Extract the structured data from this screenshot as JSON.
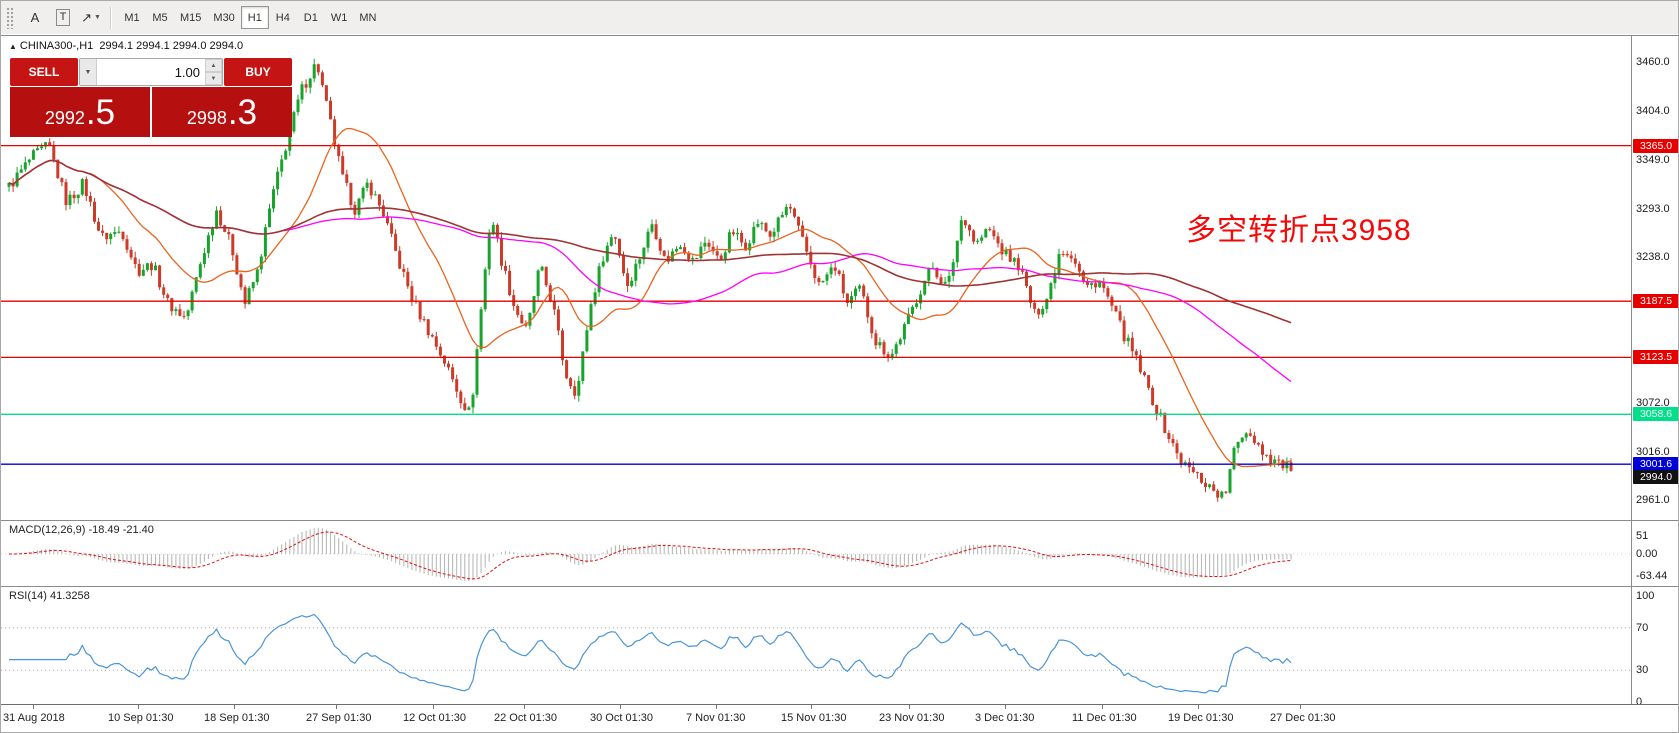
{
  "toolbar": {
    "tools": [
      {
        "name": "font-tool",
        "glyph": "A",
        "boxed": false,
        "caret": false
      },
      {
        "name": "text-label-tool",
        "glyph": "T",
        "boxed": true,
        "caret": false
      },
      {
        "name": "draw-arrow-tool",
        "glyph": "↗",
        "boxed": false,
        "caret": true
      }
    ],
    "timeframes": [
      {
        "label": "M1",
        "active": false
      },
      {
        "label": "M5",
        "active": false
      },
      {
        "label": "M15",
        "active": false
      },
      {
        "label": "M30",
        "active": false
      },
      {
        "label": "H1",
        "active": true
      },
      {
        "label": "H4",
        "active": false
      },
      {
        "label": "D1",
        "active": false
      },
      {
        "label": "W1",
        "active": false
      },
      {
        "label": "MN",
        "active": false
      }
    ]
  },
  "chart_header": {
    "title": "CHINA300-,H1  2994.1 2994.1 2994.0 2994.0",
    "collapse_icon": "▲"
  },
  "trade_panel": {
    "sell_label": "SELL",
    "buy_label": "BUY",
    "volume": "1.00",
    "sell_price": {
      "main": "2992",
      "big": ".5"
    },
    "buy_price": {
      "main": "2998",
      "big": ".3"
    }
  },
  "annotation": {
    "text": "多空转折点3958",
    "color": "#f50808"
  },
  "price_axis": {
    "ticks": [
      "3460.0",
      "3404.0",
      "3349.0",
      "3293.0",
      "3238.0",
      "3072.0",
      "3016.0",
      "2961.0"
    ],
    "tick_values": [
      3460.0,
      3404.0,
      3349.0,
      3293.0,
      3238.0,
      3072.0,
      3016.0,
      2961.0
    ]
  },
  "levels": [
    {
      "label": "3365.0",
      "value": 3365.0,
      "color": "#e60000"
    },
    {
      "label": "3187.5",
      "value": 3187.5,
      "color": "#e60000"
    },
    {
      "label": "3123.5",
      "value": 3123.5,
      "color": "#e60000"
    },
    {
      "label": "3058.6",
      "value": 3058.6,
      "color": "#00e08a"
    },
    {
      "label": "3001.6",
      "value": 3001.6,
      "color": "#0000d8"
    }
  ],
  "current_price": {
    "label": "2994.0",
    "value": 2994.0,
    "color": "#111111"
  },
  "indicators": {
    "macd": {
      "label": "MACD(12,26,9) -18.49 -21.40",
      "ticks": [
        "51",
        "0.00",
        "-63.44"
      ],
      "tick_values": [
        51,
        0,
        -63.44
      ]
    },
    "rsi": {
      "label": "RSI(14) 41.3258",
      "ticks": [
        "100",
        "70",
        "30",
        "0"
      ],
      "tick_values": [
        100,
        70,
        30,
        0
      ],
      "levels": [
        70,
        30
      ]
    }
  },
  "time_axis": {
    "labels": [
      "31 Aug 2018",
      "10 Sep 01:30",
      "18 Sep 01:30",
      "27 Sep 01:30",
      "12 Oct 01:30",
      "22 Oct 01:30",
      "30 Oct 01:30",
      "7 Nov 01:30",
      "15 Nov 01:30",
      "23 Nov 01:30",
      "3 Dec 01:30",
      "11 Dec 01:30",
      "19 Dec 01:30",
      "27 Dec 01:30"
    ]
  },
  "chart_data": {
    "type": "candlestick",
    "symbol": "CHINA300-",
    "timeframe": "H1",
    "ohlc_last": {
      "open": 2994.1,
      "high": 2994.1,
      "low": 2994.0,
      "close": 2994.0
    },
    "bid": 2992.5,
    "ask": 2998.3,
    "y_range": [
      2938,
      3490
    ],
    "candle_count": 316,
    "horizontal_lines": [
      3365.0,
      3187.5,
      3123.5,
      3058.6,
      3001.6
    ],
    "moving_averages": [
      {
        "name": "ma-fast",
        "period": 20,
        "color": "#e8641e",
        "width": 1.3
      },
      {
        "name": "ma-medium",
        "period": 68,
        "color": "#ff00ff",
        "width": 1.3
      },
      {
        "name": "ma-slow",
        "period": 140,
        "color": "#a03434",
        "width": 1.6
      }
    ],
    "price_path": [
      [
        0.0,
        3318
      ],
      [
        0.018,
        3352
      ],
      [
        0.031,
        3365
      ],
      [
        0.045,
        3300
      ],
      [
        0.058,
        3322
      ],
      [
        0.072,
        3260
      ],
      [
        0.088,
        3268
      ],
      [
        0.1,
        3222
      ],
      [
        0.112,
        3230
      ],
      [
        0.124,
        3185
      ],
      [
        0.138,
        3168
      ],
      [
        0.15,
        3235
      ],
      [
        0.162,
        3292
      ],
      [
        0.174,
        3248
      ],
      [
        0.184,
        3185
      ],
      [
        0.194,
        3222
      ],
      [
        0.205,
        3305
      ],
      [
        0.216,
        3365
      ],
      [
        0.228,
        3428
      ],
      [
        0.24,
        3460
      ],
      [
        0.25,
        3395
      ],
      [
        0.26,
        3328
      ],
      [
        0.27,
        3292
      ],
      [
        0.28,
        3322
      ],
      [
        0.292,
        3288
      ],
      [
        0.304,
        3232
      ],
      [
        0.316,
        3185
      ],
      [
        0.328,
        3152
      ],
      [
        0.34,
        3118
      ],
      [
        0.352,
        3078
      ],
      [
        0.36,
        3058
      ],
      [
        0.368,
        3175
      ],
      [
        0.376,
        3288
      ],
      [
        0.384,
        3235
      ],
      [
        0.394,
        3182
      ],
      [
        0.404,
        3152
      ],
      [
        0.414,
        3228
      ],
      [
        0.424,
        3185
      ],
      [
        0.434,
        3105
      ],
      [
        0.443,
        3082
      ],
      [
        0.453,
        3178
      ],
      [
        0.463,
        3238
      ],
      [
        0.472,
        3268
      ],
      [
        0.482,
        3205
      ],
      [
        0.492,
        3238
      ],
      [
        0.502,
        3278
      ],
      [
        0.512,
        3232
      ],
      [
        0.524,
        3255
      ],
      [
        0.534,
        3232
      ],
      [
        0.544,
        3258
      ],
      [
        0.554,
        3232
      ],
      [
        0.564,
        3268
      ],
      [
        0.574,
        3250
      ],
      [
        0.584,
        3278
      ],
      [
        0.594,
        3262
      ],
      [
        0.608,
        3298
      ],
      [
        0.62,
        3252
      ],
      [
        0.632,
        3205
      ],
      [
        0.644,
        3228
      ],
      [
        0.654,
        3185
      ],
      [
        0.664,
        3202
      ],
      [
        0.676,
        3142
      ],
      [
        0.688,
        3125
      ],
      [
        0.7,
        3162
      ],
      [
        0.71,
        3198
      ],
      [
        0.72,
        3228
      ],
      [
        0.732,
        3202
      ],
      [
        0.744,
        3288
      ],
      [
        0.754,
        3252
      ],
      [
        0.764,
        3270
      ],
      [
        0.776,
        3242
      ],
      [
        0.788,
        3228
      ],
      [
        0.8,
        3172
      ],
      [
        0.81,
        3192
      ],
      [
        0.82,
        3248
      ],
      [
        0.83,
        3240
      ],
      [
        0.84,
        3202
      ],
      [
        0.85,
        3212
      ],
      [
        0.86,
        3182
      ],
      [
        0.87,
        3148
      ],
      [
        0.88,
        3118
      ],
      [
        0.89,
        3082
      ],
      [
        0.9,
        3048
      ],
      [
        0.908,
        3022
      ],
      [
        0.916,
        3002
      ],
      [
        0.924,
        2992
      ],
      [
        0.932,
        2982
      ],
      [
        0.94,
        2972
      ],
      [
        0.948,
        2963
      ],
      [
        0.956,
        3018
      ],
      [
        0.964,
        3042
      ],
      [
        0.972,
        3030
      ],
      [
        0.98,
        3012
      ],
      [
        0.988,
        3006
      ],
      [
        1.0,
        2994
      ]
    ]
  },
  "colors": {
    "bull": "#18a42c",
    "bear": "#cc3a28",
    "macd_hist": "#b9b9b9",
    "macd_signal": "#e01010",
    "rsi_line": "#4a94d8",
    "panel_red": "#b50f0f",
    "level_red": "#e60000",
    "level_green": "#00e08a",
    "level_blue": "#0000d8"
  }
}
